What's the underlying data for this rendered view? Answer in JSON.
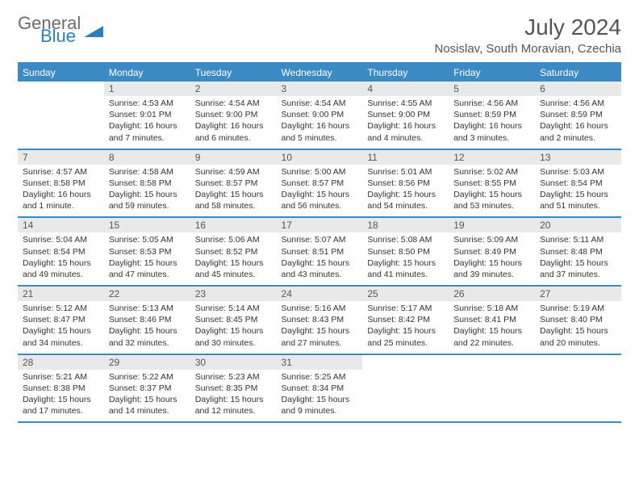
{
  "logo": {
    "line1": "General",
    "line2": "Blue"
  },
  "title": "July 2024",
  "location": "Nosislav, South Moravian, Czechia",
  "colors": {
    "accent": "#3b8ac4",
    "header_bg": "#e9e9e9",
    "text": "#333333"
  },
  "weekdays": [
    "Sunday",
    "Monday",
    "Tuesday",
    "Wednesday",
    "Thursday",
    "Friday",
    "Saturday"
  ],
  "weeks": [
    [
      null,
      {
        "n": "1",
        "sr": "Sunrise: 4:53 AM",
        "ss": "Sunset: 9:01 PM",
        "d1": "Daylight: 16 hours",
        "d2": "and 7 minutes."
      },
      {
        "n": "2",
        "sr": "Sunrise: 4:54 AM",
        "ss": "Sunset: 9:00 PM",
        "d1": "Daylight: 16 hours",
        "d2": "and 6 minutes."
      },
      {
        "n": "3",
        "sr": "Sunrise: 4:54 AM",
        "ss": "Sunset: 9:00 PM",
        "d1": "Daylight: 16 hours",
        "d2": "and 5 minutes."
      },
      {
        "n": "4",
        "sr": "Sunrise: 4:55 AM",
        "ss": "Sunset: 9:00 PM",
        "d1": "Daylight: 16 hours",
        "d2": "and 4 minutes."
      },
      {
        "n": "5",
        "sr": "Sunrise: 4:56 AM",
        "ss": "Sunset: 8:59 PM",
        "d1": "Daylight: 16 hours",
        "d2": "and 3 minutes."
      },
      {
        "n": "6",
        "sr": "Sunrise: 4:56 AM",
        "ss": "Sunset: 8:59 PM",
        "d1": "Daylight: 16 hours",
        "d2": "and 2 minutes."
      }
    ],
    [
      {
        "n": "7",
        "sr": "Sunrise: 4:57 AM",
        "ss": "Sunset: 8:58 PM",
        "d1": "Daylight: 16 hours",
        "d2": "and 1 minute."
      },
      {
        "n": "8",
        "sr": "Sunrise: 4:58 AM",
        "ss": "Sunset: 8:58 PM",
        "d1": "Daylight: 15 hours",
        "d2": "and 59 minutes."
      },
      {
        "n": "9",
        "sr": "Sunrise: 4:59 AM",
        "ss": "Sunset: 8:57 PM",
        "d1": "Daylight: 15 hours",
        "d2": "and 58 minutes."
      },
      {
        "n": "10",
        "sr": "Sunrise: 5:00 AM",
        "ss": "Sunset: 8:57 PM",
        "d1": "Daylight: 15 hours",
        "d2": "and 56 minutes."
      },
      {
        "n": "11",
        "sr": "Sunrise: 5:01 AM",
        "ss": "Sunset: 8:56 PM",
        "d1": "Daylight: 15 hours",
        "d2": "and 54 minutes."
      },
      {
        "n": "12",
        "sr": "Sunrise: 5:02 AM",
        "ss": "Sunset: 8:55 PM",
        "d1": "Daylight: 15 hours",
        "d2": "and 53 minutes."
      },
      {
        "n": "13",
        "sr": "Sunrise: 5:03 AM",
        "ss": "Sunset: 8:54 PM",
        "d1": "Daylight: 15 hours",
        "d2": "and 51 minutes."
      }
    ],
    [
      {
        "n": "14",
        "sr": "Sunrise: 5:04 AM",
        "ss": "Sunset: 8:54 PM",
        "d1": "Daylight: 15 hours",
        "d2": "and 49 minutes."
      },
      {
        "n": "15",
        "sr": "Sunrise: 5:05 AM",
        "ss": "Sunset: 8:53 PM",
        "d1": "Daylight: 15 hours",
        "d2": "and 47 minutes."
      },
      {
        "n": "16",
        "sr": "Sunrise: 5:06 AM",
        "ss": "Sunset: 8:52 PM",
        "d1": "Daylight: 15 hours",
        "d2": "and 45 minutes."
      },
      {
        "n": "17",
        "sr": "Sunrise: 5:07 AM",
        "ss": "Sunset: 8:51 PM",
        "d1": "Daylight: 15 hours",
        "d2": "and 43 minutes."
      },
      {
        "n": "18",
        "sr": "Sunrise: 5:08 AM",
        "ss": "Sunset: 8:50 PM",
        "d1": "Daylight: 15 hours",
        "d2": "and 41 minutes."
      },
      {
        "n": "19",
        "sr": "Sunrise: 5:09 AM",
        "ss": "Sunset: 8:49 PM",
        "d1": "Daylight: 15 hours",
        "d2": "and 39 minutes."
      },
      {
        "n": "20",
        "sr": "Sunrise: 5:11 AM",
        "ss": "Sunset: 8:48 PM",
        "d1": "Daylight: 15 hours",
        "d2": "and 37 minutes."
      }
    ],
    [
      {
        "n": "21",
        "sr": "Sunrise: 5:12 AM",
        "ss": "Sunset: 8:47 PM",
        "d1": "Daylight: 15 hours",
        "d2": "and 34 minutes."
      },
      {
        "n": "22",
        "sr": "Sunrise: 5:13 AM",
        "ss": "Sunset: 8:46 PM",
        "d1": "Daylight: 15 hours",
        "d2": "and 32 minutes."
      },
      {
        "n": "23",
        "sr": "Sunrise: 5:14 AM",
        "ss": "Sunset: 8:45 PM",
        "d1": "Daylight: 15 hours",
        "d2": "and 30 minutes."
      },
      {
        "n": "24",
        "sr": "Sunrise: 5:16 AM",
        "ss": "Sunset: 8:43 PM",
        "d1": "Daylight: 15 hours",
        "d2": "and 27 minutes."
      },
      {
        "n": "25",
        "sr": "Sunrise: 5:17 AM",
        "ss": "Sunset: 8:42 PM",
        "d1": "Daylight: 15 hours",
        "d2": "and 25 minutes."
      },
      {
        "n": "26",
        "sr": "Sunrise: 5:18 AM",
        "ss": "Sunset: 8:41 PM",
        "d1": "Daylight: 15 hours",
        "d2": "and 22 minutes."
      },
      {
        "n": "27",
        "sr": "Sunrise: 5:19 AM",
        "ss": "Sunset: 8:40 PM",
        "d1": "Daylight: 15 hours",
        "d2": "and 20 minutes."
      }
    ],
    [
      {
        "n": "28",
        "sr": "Sunrise: 5:21 AM",
        "ss": "Sunset: 8:38 PM",
        "d1": "Daylight: 15 hours",
        "d2": "and 17 minutes."
      },
      {
        "n": "29",
        "sr": "Sunrise: 5:22 AM",
        "ss": "Sunset: 8:37 PM",
        "d1": "Daylight: 15 hours",
        "d2": "and 14 minutes."
      },
      {
        "n": "30",
        "sr": "Sunrise: 5:23 AM",
        "ss": "Sunset: 8:35 PM",
        "d1": "Daylight: 15 hours",
        "d2": "and 12 minutes."
      },
      {
        "n": "31",
        "sr": "Sunrise: 5:25 AM",
        "ss": "Sunset: 8:34 PM",
        "d1": "Daylight: 15 hours",
        "d2": "and 9 minutes."
      },
      null,
      null,
      null
    ]
  ]
}
